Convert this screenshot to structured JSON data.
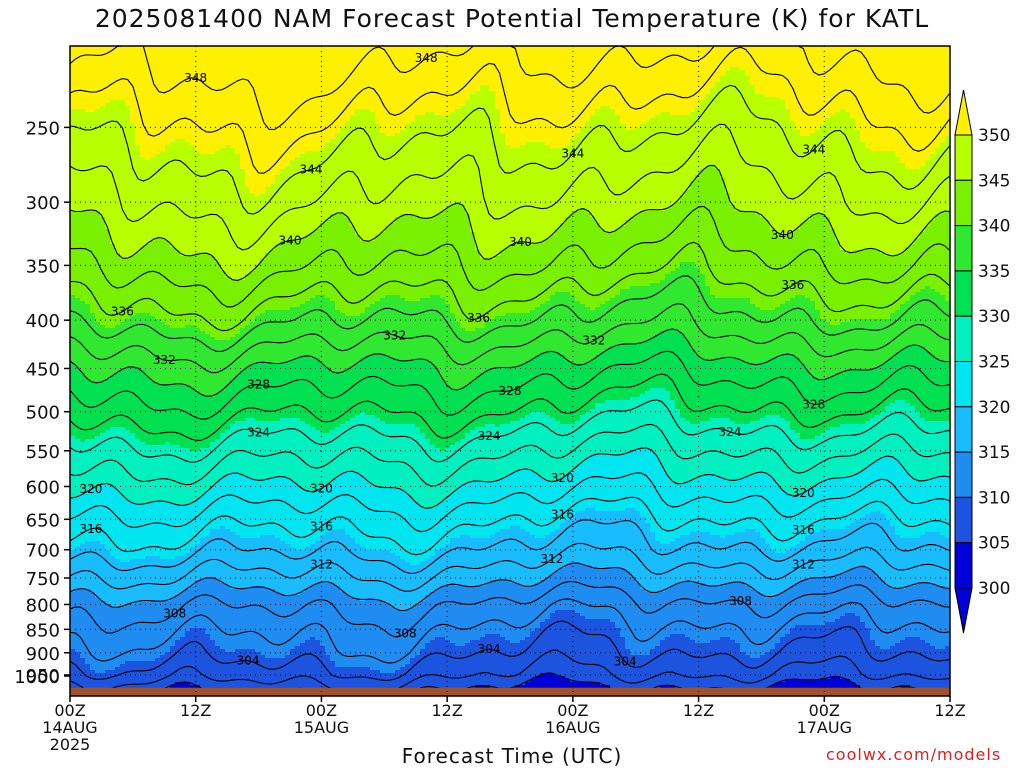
{
  "chart_data": {
    "type": "heatmap",
    "title": "2025081400 NAM Forecast Potential Temperature (K) for KATL",
    "xlabel": "Forecast Time (UTC)",
    "ylabel": "",
    "credit": "coolwx.com/models",
    "y_scale": "log",
    "y_inverted": true,
    "ylim_hPa": [
      1000,
      205
    ],
    "y_ticks": [
      250,
      300,
      350,
      400,
      450,
      500,
      550,
      600,
      650,
      700,
      750,
      800,
      850,
      900,
      950,
      1000
    ],
    "x_ticks": [
      {
        "hours": 0,
        "time": "00Z",
        "date": "14AUG",
        "year": "2025"
      },
      {
        "hours": 12,
        "time": "12Z",
        "date": "",
        "year": ""
      },
      {
        "hours": 24,
        "time": "00Z",
        "date": "15AUG",
        "year": ""
      },
      {
        "hours": 36,
        "time": "12Z",
        "date": "",
        "year": ""
      },
      {
        "hours": 48,
        "time": "00Z",
        "date": "16AUG",
        "year": ""
      },
      {
        "hours": 60,
        "time": "12Z",
        "date": "",
        "year": ""
      },
      {
        "hours": 72,
        "time": "00Z",
        "date": "17AUG",
        "year": ""
      },
      {
        "hours": 84,
        "time": "12Z",
        "date": "",
        "year": ""
      }
    ],
    "xlim_hours": [
      0,
      84
    ],
    "grid": true,
    "surface_pressure_hPa": 980,
    "colorbar": {
      "levels": [
        300,
        305,
        310,
        315,
        320,
        325,
        330,
        335,
        340,
        345,
        350
      ],
      "colors": [
        "#0000d8",
        "#1c54e0",
        "#1e8cf0",
        "#18bcff",
        "#00e6f0",
        "#00f0c0",
        "#00e050",
        "#30e830",
        "#78f000",
        "#b8ff00",
        "#fff000"
      ],
      "extend": "both"
    },
    "contour_interval": 2,
    "contour_labels": [
      {
        "theta": 348,
        "hours": [
          12,
          34
        ]
      },
      {
        "theta": 344,
        "hours": [
          23,
          48,
          71
        ]
      },
      {
        "theta": 340,
        "hours": [
          21,
          43,
          68
        ]
      },
      {
        "theta": 336,
        "hours": [
          5,
          39,
          69
        ]
      },
      {
        "theta": 332,
        "hours": [
          9,
          31,
          50
        ]
      },
      {
        "theta": 328,
        "hours": [
          18,
          42,
          71
        ]
      },
      {
        "theta": 324,
        "hours": [
          18,
          40,
          63
        ]
      },
      {
        "theta": 320,
        "hours": [
          2,
          24,
          47,
          70
        ]
      },
      {
        "theta": 316,
        "hours": [
          2,
          24,
          47,
          70
        ]
      },
      {
        "theta": 312,
        "hours": [
          24,
          46,
          70
        ]
      },
      {
        "theta": 308,
        "hours": [
          10,
          32,
          64
        ]
      },
      {
        "theta": 304,
        "hours": [
          17,
          40,
          53
        ]
      }
    ],
    "theta_profile": [
      {
        "p": 1000,
        "theta": 299
      },
      {
        "p": 950,
        "theta": 302.5
      },
      {
        "p": 900,
        "theta": 304.5
      },
      {
        "p": 850,
        "theta": 306
      },
      {
        "p": 800,
        "theta": 308
      },
      {
        "p": 750,
        "theta": 311
      },
      {
        "p": 700,
        "theta": 314
      },
      {
        "p": 650,
        "theta": 316.5
      },
      {
        "p": 600,
        "theta": 319.5
      },
      {
        "p": 550,
        "theta": 322.5
      },
      {
        "p": 500,
        "theta": 326
      },
      {
        "p": 450,
        "theta": 329.5
      },
      {
        "p": 400,
        "theta": 334
      },
      {
        "p": 350,
        "theta": 338
      },
      {
        "p": 300,
        "theta": 341.5
      },
      {
        "p": 250,
        "theta": 345
      },
      {
        "p": 205,
        "theta": 349
      }
    ]
  }
}
